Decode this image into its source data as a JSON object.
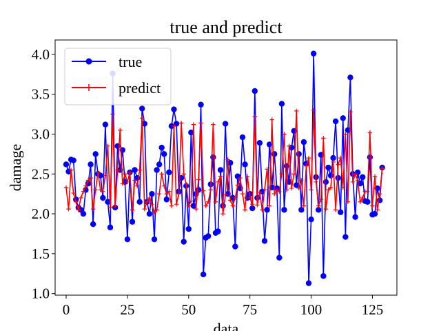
{
  "chart_data": {
    "type": "line",
    "title": "true and predict",
    "xlabel": "data",
    "ylabel": "damage",
    "xlim": [
      -4.5,
      135
    ],
    "ylim": [
      0.98,
      4.18
    ],
    "x_ticks": [
      0,
      25,
      50,
      75,
      100,
      125
    ],
    "y_ticks": [
      1.0,
      1.5,
      2.0,
      2.5,
      3.0,
      3.5,
      4.0
    ],
    "x_tick_labels": [
      "0",
      "25",
      "50",
      "75",
      "100",
      "125"
    ],
    "y_tick_labels": [
      "1.0",
      "1.5",
      "2.0",
      "2.5",
      "3.0",
      "3.5",
      "4.0"
    ],
    "legend_position": "top-left",
    "grid": false,
    "series": [
      {
        "name": "true",
        "color": "#0000ff",
        "marker": "circle",
        "values": [
          2.62,
          2.53,
          2.68,
          2.67,
          2.18,
          2.08,
          2.05,
          2.0,
          2.3,
          2.38,
          2.62,
          1.87,
          2.75,
          2.5,
          2.48,
          2.2,
          3.12,
          2.15,
          1.83,
          3.76,
          2.08,
          2.85,
          2.55,
          2.8,
          2.4,
          1.68,
          2.52,
          1.9,
          2.55,
          2.45,
          2.15,
          3.32,
          3.13,
          2.15,
          2.0,
          2.25,
          1.68,
          2.55,
          2.62,
          2.83,
          2.75,
          2.18,
          2.52,
          3.1,
          3.31,
          3.13,
          2.28,
          2.45,
          1.65,
          2.35,
          1.81,
          3.02,
          2.1,
          2.25,
          2.3,
          3.37,
          1.24,
          1.7,
          1.72,
          2.37,
          2.71,
          1.76,
          1.78,
          2.55,
          2.1,
          3.13,
          2.25,
          2.64,
          2.2,
          1.59,
          2.47,
          2.32,
          2.96,
          2.62,
          2.2,
          2.25,
          2.07,
          3.54,
          2.2,
          2.89,
          2.28,
          1.66,
          2.05,
          2.87,
          2.33,
          2.75,
          2.32,
          1.45,
          3.38,
          2.05,
          2.6,
          2.4,
          2.83,
          3.04,
          2.36,
          2.75,
          2.05,
          2.9,
          2.63,
          1.13,
          1.93,
          4.01,
          2.46,
          2.05,
          2.74,
          1.22,
          2.4,
          2.58,
          2.48,
          2.7,
          3.16,
          2.45,
          2.02,
          3.2,
          1.71,
          3.05,
          3.71,
          2.5,
          1.96,
          2.52,
          2.38,
          2.46,
          2.16,
          2.15,
          2.71,
          1.99,
          2.0,
          2.32,
          2.17,
          2.58
        ]
      },
      {
        "name": "predict",
        "color": "#ff0000",
        "marker": "plus",
        "values": [
          2.33,
          2.06,
          2.55,
          2.26,
          2.15,
          2.05,
          2.2,
          2.28,
          2.35,
          2.42,
          2.45,
          2.06,
          2.3,
          2.52,
          2.3,
          2.28,
          2.48,
          2.85,
          2.08,
          3.25,
          2.1,
          2.55,
          3.05,
          2.38,
          2.5,
          2.4,
          2.52,
          2.05,
          2.42,
          2.35,
          2.55,
          3.2,
          2.06,
          2.15,
          2.2,
          2.12,
          2.02,
          2.05,
          2.25,
          2.5,
          2.35,
          2.25,
          2.28,
          2.1,
          3.1,
          2.12,
          2.25,
          3.14,
          2.5,
          2.37,
          2.1,
          2.16,
          3.12,
          2.06,
          2.43,
          3.14,
          2.29,
          2.1,
          2.15,
          2.3,
          3.12,
          2.15,
          2.4,
          2.47,
          2.0,
          2.24,
          2.68,
          2.17,
          2.1,
          2.2,
          2.36,
          2.45,
          2.25,
          2.05,
          2.47,
          2.2,
          2.12,
          3.22,
          2.11,
          2.27,
          2.05,
          2.3,
          2.56,
          2.1,
          3.18,
          2.25,
          2.3,
          2.28,
          2.5,
          3.0,
          2.3,
          2.85,
          2.32,
          2.5,
          3.29,
          2.32,
          2.42,
          2.1,
          2.6,
          2.7,
          2.3,
          3.3,
          2.4,
          2.1,
          2.18,
          2.95,
          2.06,
          2.3,
          2.33,
          2.65,
          2.05,
          2.62,
          2.7,
          2.33,
          3.0,
          2.15,
          3.28,
          2.4,
          2.5,
          2.42,
          2.15,
          2.2,
          2.28,
          2.28,
          3.02,
          2.1,
          2.47,
          2.05,
          2.25,
          2.57
        ]
      }
    ]
  }
}
